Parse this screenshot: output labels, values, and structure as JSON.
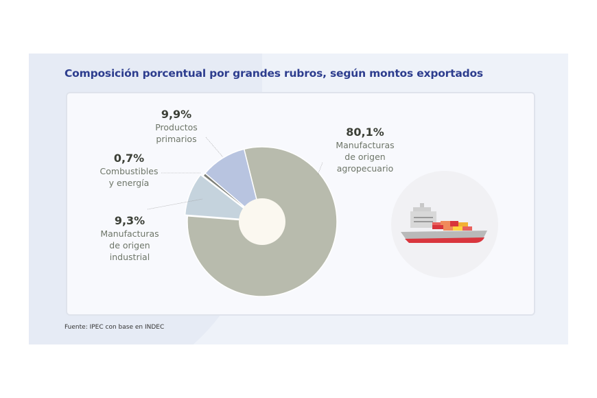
{
  "chart_data": {
    "type": "pie",
    "title": "Composición porcentual por grandes rubros, según montos exportados",
    "source": "Fuente: IPEC con base en INDEC",
    "slices": [
      {
        "name": "Manufacturas de origen agropecuario",
        "label_lines": [
          "Manufacturas",
          "de origen",
          "agropecuario"
        ],
        "value": 80.1,
        "pct_label": "80,1%",
        "color": "#b8bbad"
      },
      {
        "name": "Manufacturas de origen industrial",
        "label_lines": [
          "Manufacturas",
          "de origen",
          "industrial"
        ],
        "value": 9.3,
        "pct_label": "9,3%",
        "color": "#c5d3dd"
      },
      {
        "name": "Combustibles y energía",
        "label_lines": [
          "Combustibles",
          "y energía"
        ],
        "value": 0.7,
        "pct_label": "0,7%",
        "color": "#7d7f78"
      },
      {
        "name": "Productos primarios",
        "label_lines": [
          "Productos",
          "primarios"
        ],
        "value": 9.9,
        "pct_label": "9,9%",
        "color": "#b8c4e0"
      }
    ],
    "hole_color": "#fbf8f0"
  },
  "icon": "cargo-ship-icon"
}
